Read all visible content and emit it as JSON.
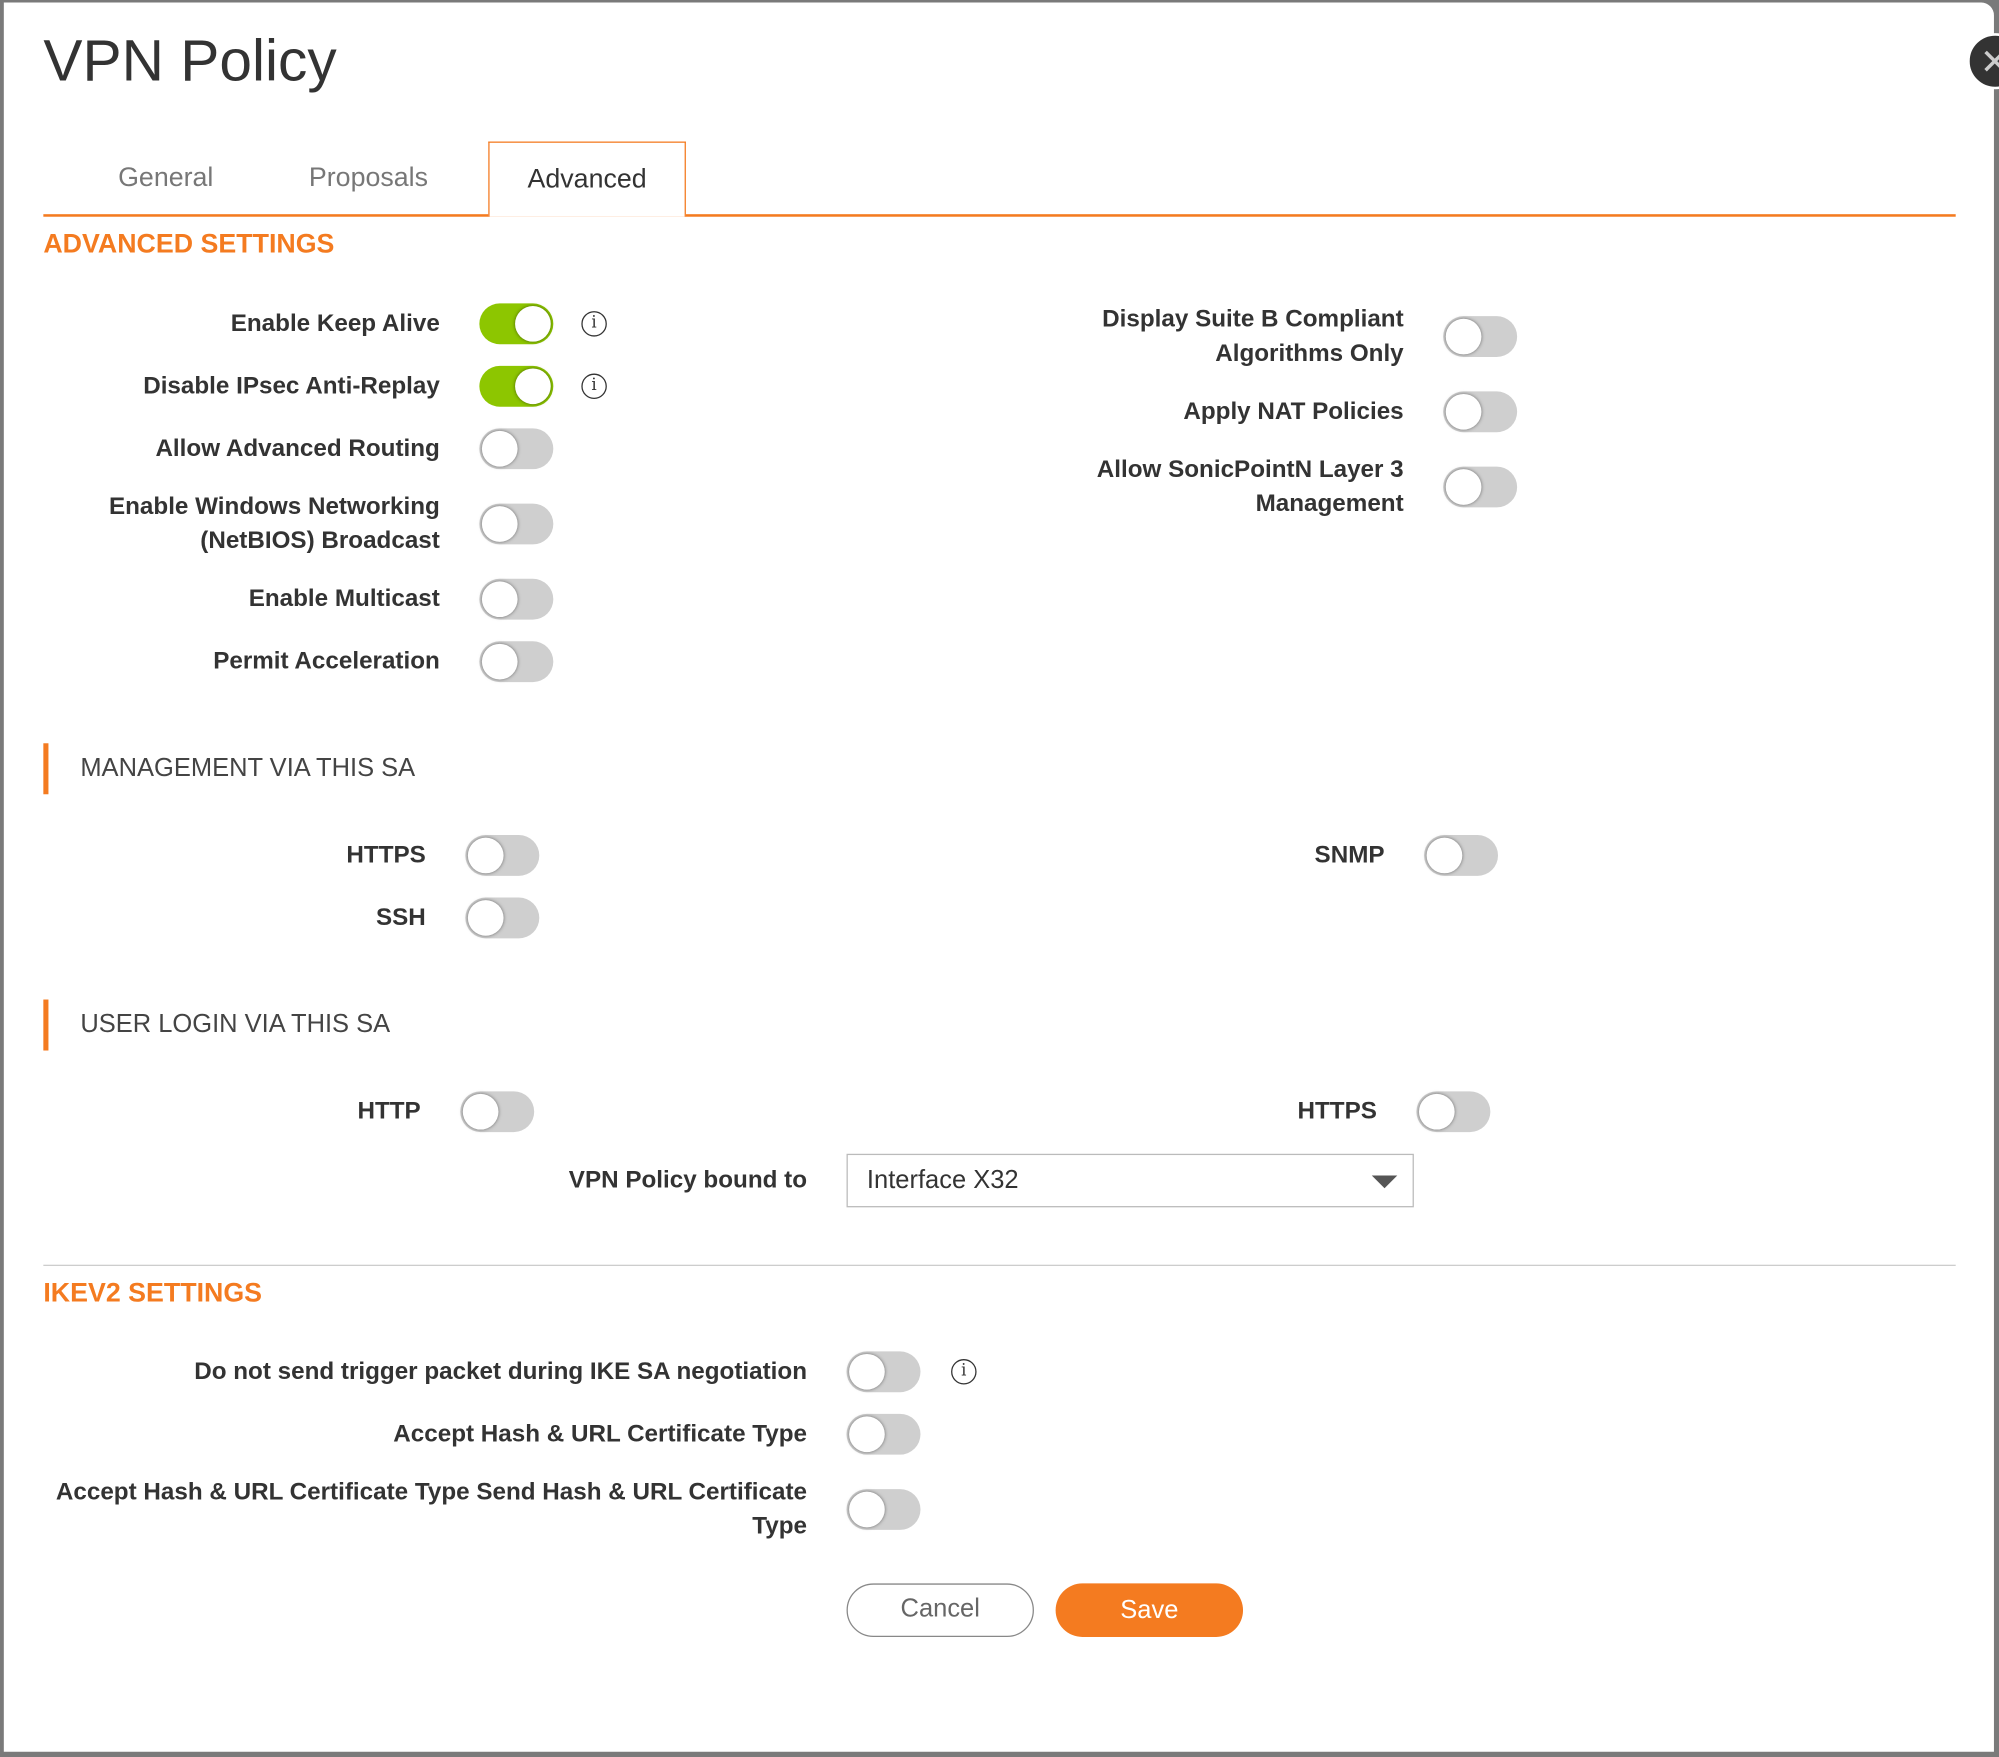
{
  "dialog": {
    "title": "VPN Policy",
    "close_icon": "close-icon"
  },
  "tabs": [
    {
      "label": "General",
      "active": false
    },
    {
      "label": "Proposals",
      "active": false
    },
    {
      "label": "Advanced",
      "active": true
    }
  ],
  "colors": {
    "accent": "#f47b20",
    "toggle_on": "#8dc600",
    "toggle_off": "#cfcfcf"
  },
  "advanced": {
    "heading": "ADVANCED SETTINGS",
    "left": [
      {
        "label": "Enable Keep Alive",
        "on": true,
        "info": true
      },
      {
        "label": "Disable IPsec Anti-Replay",
        "on": true,
        "info": true
      },
      {
        "label": "Allow Advanced Routing",
        "on": false
      },
      {
        "label": "Enable Windows Networking (NetBIOS) Broadcast",
        "on": false
      },
      {
        "label": "Enable Multicast",
        "on": false
      },
      {
        "label": "Permit Acceleration",
        "on": false
      }
    ],
    "right": [
      {
        "label": "Display Suite B Compliant Algorithms Only",
        "on": false
      },
      {
        "label": "Apply NAT Policies",
        "on": false
      },
      {
        "label": "Allow SonicPointN Layer 3 Management",
        "on": false
      }
    ]
  },
  "management": {
    "heading": "MANAGEMENT VIA THIS SA",
    "https": {
      "label": "HTTPS",
      "on": false
    },
    "ssh": {
      "label": "SSH",
      "on": false
    },
    "snmp": {
      "label": "SNMP",
      "on": false
    }
  },
  "user_login": {
    "heading": "USER LOGIN VIA THIS SA",
    "http": {
      "label": "HTTP",
      "on": false
    },
    "https": {
      "label": "HTTPS",
      "on": false
    },
    "bound_label": "VPN Policy bound to",
    "bound_value": "Interface X32"
  },
  "ikev2": {
    "heading": "IKEV2 SETTINGS",
    "rows": [
      {
        "label": "Do not send trigger packet during IKE SA negotiation",
        "on": false,
        "info": true
      },
      {
        "label": "Accept Hash & URL Certificate Type",
        "on": false
      },
      {
        "label": "Accept Hash & URL Certificate Type Send Hash & URL Certificate Type",
        "on": false
      }
    ]
  },
  "buttons": {
    "cancel": "Cancel",
    "save": "Save"
  },
  "info_glyph": "i"
}
